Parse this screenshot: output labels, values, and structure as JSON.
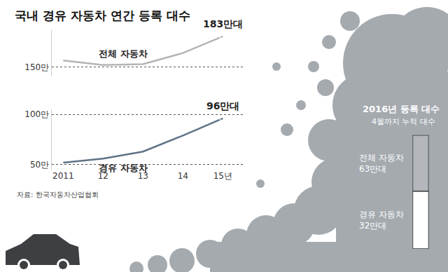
{
  "chart_data": [
    {
      "type": "line",
      "title": "국내 경유 자동차 연간 등록 대수",
      "source": "자료: 한국자동차산업협회",
      "categories": [
        "2011",
        "12",
        "13",
        "14",
        "15년"
      ],
      "series": [
        {
          "name": "전체 자동차",
          "color": "#b4b4b4",
          "axis": "y",
          "marker": "circle-open",
          "values": [
            157,
            152,
            153,
            165,
            183
          ],
          "value_labels": [
            null,
            null,
            null,
            null,
            "183만대"
          ]
        },
        {
          "name": "경유 자동차",
          "color": "#5f7286",
          "axis": "y2",
          "marker": "circle-open",
          "values": [
            52,
            56,
            63,
            79,
            96
          ],
          "value_labels": [
            null,
            null,
            null,
            null,
            "96만대"
          ]
        }
      ],
      "ylim": [
        140,
        190
      ],
      "yticks": [
        {
          "value": 150,
          "label": "150만"
        }
      ],
      "y2lim": [
        45,
        105
      ],
      "y2ticks": [
        {
          "value": 50,
          "label": "50만"
        },
        {
          "value": 100,
          "label": "100만"
        }
      ],
      "grid": true
    },
    {
      "type": "bar",
      "title": "2016년 등록 대수",
      "subtitle": "4월까지 누적 대수",
      "series": [
        {
          "name": "전체 자동차",
          "color": "#b3b7bc",
          "values": [
            63
          ],
          "value_labels": [
            "63만대"
          ]
        },
        {
          "name": "경유 자동차",
          "color": "#ffffff",
          "values": [
            32
          ],
          "value_labels": [
            "32만대"
          ]
        }
      ],
      "ylim": [
        0,
        63
      ],
      "tick_labels": false,
      "grid": false
    }
  ]
}
